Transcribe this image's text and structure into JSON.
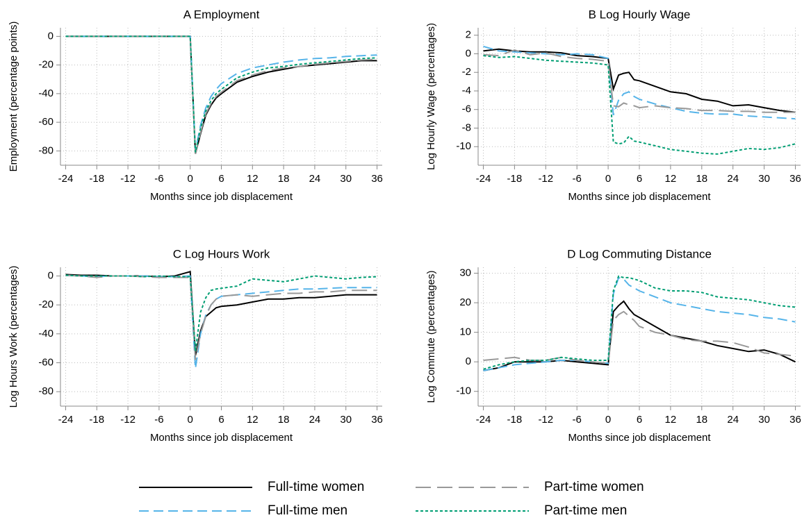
{
  "chart_data": [
    {
      "type": "line",
      "title": "A Employment",
      "x_label": "Months since job displacement",
      "y_label": "Employment (percentage points)",
      "x": [
        -24,
        -21,
        -18,
        -15,
        -12,
        -9,
        -6,
        -3,
        0,
        1,
        2,
        3,
        4,
        5,
        6,
        9,
        12,
        15,
        18,
        21,
        24,
        27,
        30,
        33,
        36
      ],
      "xlim": [
        -25,
        37
      ],
      "xticks": [
        -24,
        -18,
        -12,
        -6,
        0,
        6,
        12,
        18,
        24,
        30,
        36
      ],
      "ylim": [
        -90,
        6
      ],
      "yticks": [
        0,
        -20,
        -40,
        -60,
        -80
      ],
      "grid": true,
      "series": [
        {
          "name": "Full-time women",
          "color": "#000000",
          "dash": "solid",
          "values": [
            0,
            0,
            0,
            0,
            0,
            0,
            0,
            0,
            0,
            -82,
            -68,
            -55,
            -48,
            -43,
            -40,
            -32,
            -28,
            -25,
            -23,
            -21,
            -20,
            -19,
            -18,
            -17,
            -17
          ]
        },
        {
          "name": "Full-time men",
          "color": "#56b4e9",
          "dash": "dashed",
          "values": [
            0,
            0,
            0,
            0,
            0,
            0,
            0,
            0,
            0,
            -80,
            -62,
            -50,
            -42,
            -37,
            -33,
            -26,
            -22,
            -20,
            -18,
            -16.5,
            -15.5,
            -15,
            -14,
            -13.5,
            -13
          ]
        },
        {
          "name": "Part-time women",
          "color": "#999999",
          "dash": "longdash",
          "values": [
            0,
            0,
            0,
            0,
            0,
            0,
            0,
            0,
            0,
            -82,
            -67,
            -54,
            -47,
            -42,
            -39,
            -31,
            -27,
            -24,
            -22,
            -21,
            -19.5,
            -18.5,
            -17.5,
            -16.5,
            -16
          ]
        },
        {
          "name": "Part-time men",
          "color": "#009e73",
          "dash": "dotted",
          "values": [
            0,
            0,
            0,
            0,
            0,
            0,
            0,
            0,
            0,
            -81,
            -64,
            -52,
            -45,
            -40,
            -37,
            -29,
            -25,
            -22,
            -21,
            -19.5,
            -18.5,
            -17.5,
            -16.5,
            -15.5,
            -15
          ]
        }
      ]
    },
    {
      "type": "line",
      "title": "B Log Hourly Wage",
      "x_label": "Months since job displacement",
      "y_label": "Log Hourly Wage (percentages)",
      "x": [
        -24,
        -21,
        -18,
        -15,
        -12,
        -9,
        -6,
        -3,
        0,
        1,
        2,
        3,
        4,
        5,
        6,
        9,
        12,
        15,
        18,
        21,
        24,
        27,
        30,
        33,
        36
      ],
      "xlim": [
        -25,
        37
      ],
      "xticks": [
        -24,
        -18,
        -12,
        -6,
        0,
        6,
        12,
        18,
        24,
        30,
        36
      ],
      "ylim": [
        -12,
        2.8
      ],
      "yticks": [
        2,
        0,
        -2,
        -4,
        -6,
        -8,
        -10
      ],
      "grid": true,
      "series": [
        {
          "name": "Full-time women",
          "color": "#000000",
          "dash": "solid",
          "values": [
            0.3,
            0.5,
            0.3,
            0.2,
            0.2,
            0.1,
            -0.2,
            -0.3,
            -0.5,
            -3.8,
            -2.3,
            -2.1,
            -2,
            -2.8,
            -2.9,
            -3.5,
            -4.1,
            -4.3,
            -4.9,
            -5.1,
            -5.6,
            -5.5,
            -5.8,
            -6.1,
            -6.3
          ]
        },
        {
          "name": "Full-time men",
          "color": "#56b4e9",
          "dash": "dashed",
          "values": [
            0.8,
            0.3,
            0.2,
            0.1,
            0,
            -0.1,
            0,
            -0.1,
            -0.5,
            -6.6,
            -5,
            -4.3,
            -4.1,
            -4.6,
            -4.9,
            -5.4,
            -5.8,
            -6.2,
            -6.4,
            -6.5,
            -6.5,
            -6.7,
            -6.8,
            -6.9,
            -7
          ]
        },
        {
          "name": "Part-time women",
          "color": "#999999",
          "dash": "longdash",
          "values": [
            -0.1,
            -0.2,
            0.4,
            -0.1,
            0.1,
            -0.3,
            -0.5,
            -0.6,
            -0.8,
            -5.6,
            -5.7,
            -5.3,
            -5.5,
            -5.6,
            -5.8,
            -5.6,
            -5.8,
            -5.9,
            -6.1,
            -6.1,
            -6.2,
            -6.2,
            -6.3,
            -6.3,
            -6.3
          ]
        },
        {
          "name": "Part-time men",
          "color": "#009e73",
          "dash": "dotted",
          "values": [
            -0.2,
            -0.4,
            -0.3,
            -0.5,
            -0.7,
            -0.8,
            -0.9,
            -1,
            -1.2,
            -9.5,
            -9.7,
            -9.6,
            -8.9,
            -9.4,
            -9.5,
            -9.9,
            -10.3,
            -10.5,
            -10.7,
            -10.8,
            -10.5,
            -10.2,
            -10.3,
            -10.1,
            -9.7
          ]
        }
      ]
    },
    {
      "type": "line",
      "title": "C Log Hours Work",
      "x_label": "Months since job displacement",
      "y_label": "Log Hours Work (percentages)",
      "x": [
        -24,
        -21,
        -18,
        -15,
        -12,
        -9,
        -6,
        -3,
        0,
        1,
        2,
        3,
        4,
        5,
        6,
        9,
        12,
        15,
        18,
        21,
        24,
        27,
        30,
        33,
        36
      ],
      "xlim": [
        -25,
        37
      ],
      "xticks": [
        -24,
        -18,
        -12,
        -6,
        0,
        6,
        12,
        18,
        24,
        30,
        36
      ],
      "ylim": [
        -90,
        6
      ],
      "yticks": [
        0,
        -20,
        -40,
        -60,
        -80
      ],
      "grid": true,
      "series": [
        {
          "name": "Full-time women",
          "color": "#000000",
          "dash": "solid",
          "values": [
            1,
            0.5,
            0.5,
            0,
            0,
            0,
            -0.5,
            0,
            3,
            -55,
            -38,
            -28,
            -25,
            -22,
            -21,
            -20,
            -18,
            -16,
            -16,
            -15,
            -15,
            -14,
            -13,
            -13,
            -13
          ]
        },
        {
          "name": "Full-time men",
          "color": "#56b4e9",
          "dash": "dashed",
          "values": [
            0.5,
            0,
            -0.5,
            0,
            0,
            0,
            -0.5,
            -0.5,
            0,
            -64,
            -40,
            -27,
            -20,
            -16,
            -14,
            -13,
            -12,
            -11,
            -10,
            -9,
            -9,
            -8.5,
            -8,
            -8,
            -8
          ]
        },
        {
          "name": "Part-time women",
          "color": "#999999",
          "dash": "longdash",
          "values": [
            0.5,
            0,
            -1,
            0,
            0,
            -0.5,
            -1,
            -1,
            -1,
            -58,
            -40,
            -28,
            -20,
            -16,
            -14,
            -13,
            -14,
            -13,
            -12,
            -12,
            -11,
            -11,
            -10,
            -10,
            -10
          ]
        },
        {
          "name": "Part-time men",
          "color": "#009e73",
          "dash": "dotted",
          "values": [
            0.5,
            0,
            0,
            0,
            0,
            -0.5,
            0,
            -0.5,
            -0.5,
            -52,
            -25,
            -15,
            -10,
            -9,
            -8.5,
            -7,
            -2,
            -3,
            -4,
            -2,
            0,
            -1,
            -2,
            -1,
            -0.5
          ]
        }
      ]
    },
    {
      "type": "line",
      "title": "D Log Commuting Distance",
      "x_label": "Months since job displacement",
      "y_label": "Log Commute (percentages)",
      "x": [
        -24,
        -21,
        -18,
        -15,
        -12,
        -9,
        -6,
        -3,
        0,
        1,
        2,
        3,
        4,
        5,
        6,
        9,
        12,
        15,
        18,
        21,
        24,
        27,
        30,
        33,
        36
      ],
      "xlim": [
        -25,
        37
      ],
      "xticks": [
        -24,
        -18,
        -12,
        -6,
        0,
        6,
        12,
        18,
        24,
        30,
        36
      ],
      "ylim": [
        -15,
        32
      ],
      "yticks": [
        30,
        20,
        10,
        0,
        -10
      ],
      "grid": true,
      "series": [
        {
          "name": "Full-time women",
          "color": "#000000",
          "dash": "solid",
          "values": [
            -3,
            -2,
            0,
            0,
            0,
            0.5,
            0,
            -0.5,
            -1,
            17,
            19,
            20.5,
            18,
            16,
            15,
            12,
            9,
            8,
            7,
            5.5,
            4.5,
            3.5,
            4,
            2.5,
            0
          ]
        },
        {
          "name": "Full-time men",
          "color": "#56b4e9",
          "dash": "dashed",
          "values": [
            -3,
            -2,
            -1,
            -0.5,
            0,
            0.5,
            0.5,
            0,
            -0.5,
            23,
            28.5,
            28,
            26,
            25,
            24,
            22,
            20,
            19,
            18,
            17,
            16.5,
            16,
            15,
            14.5,
            13.5
          ]
        },
        {
          "name": "Part-time women",
          "color": "#999999",
          "dash": "longdash",
          "values": [
            0.5,
            1,
            1.5,
            0.5,
            0.5,
            1.5,
            0.5,
            0,
            -0.5,
            14,
            16,
            17,
            15.5,
            14,
            12,
            10,
            9,
            7.5,
            7,
            7,
            6.5,
            5,
            3,
            2.5,
            2
          ]
        },
        {
          "name": "Part-time men",
          "color": "#009e73",
          "dash": "dotted",
          "values": [
            -2.5,
            -1,
            0,
            0.5,
            0.5,
            1.5,
            1,
            0.5,
            0.5,
            24,
            29,
            28.5,
            28.5,
            28,
            27.5,
            25,
            24,
            24,
            23.5,
            22,
            21.5,
            21,
            20,
            19,
            18.5
          ]
        }
      ]
    }
  ]
}
